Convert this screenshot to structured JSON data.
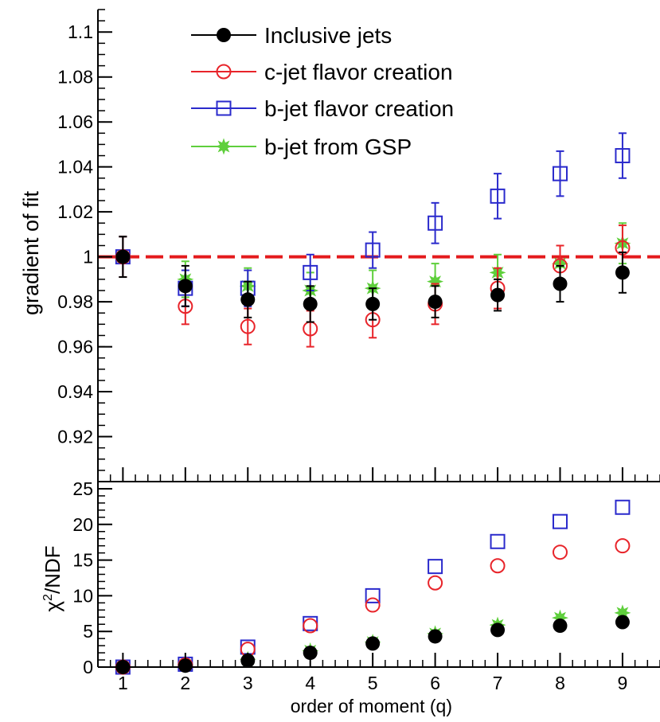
{
  "colors": {
    "inclusive": "#000000",
    "cjet": "#e8242a",
    "bjet": "#2a2acc",
    "gsp": "#5fcf3c",
    "reference": "#e41a1c"
  },
  "chart_data": [
    {
      "type": "scatter",
      "panel": "top",
      "title": "",
      "xlabel": "",
      "ylabel": "gradient of fit",
      "xlim": [
        0.6,
        9.6
      ],
      "ylim": [
        0.9,
        1.11
      ],
      "yticks": [
        "0.92",
        "0.94",
        "0.96",
        "0.98",
        "1",
        "1.02",
        "1.04",
        "1.06",
        "1.08",
        "1.1"
      ],
      "ytick_values": [
        0.92,
        0.94,
        0.96,
        0.98,
        1.0,
        1.02,
        1.04,
        1.06,
        1.08,
        1.1
      ],
      "reference_line": 1.0,
      "grid": false,
      "legend_position": "top-left",
      "x": [
        1,
        2,
        3,
        4,
        5,
        6,
        7,
        8,
        9
      ],
      "series": [
        {
          "name": "Inclusive jets",
          "marker": "filled-circle",
          "color": "#000000",
          "values": [
            1.0,
            0.987,
            0.981,
            0.979,
            0.979,
            0.98,
            0.983,
            0.988,
            0.993
          ],
          "errors": [
            0.009,
            0.009,
            0.008,
            0.008,
            0.007,
            0.007,
            0.007,
            0.008,
            0.009
          ]
        },
        {
          "name": "c-jet flavor creation",
          "marker": "open-circle",
          "color": "#e8242a",
          "values": [
            1.0,
            0.978,
            0.969,
            0.968,
            0.972,
            0.979,
            0.986,
            0.996,
            1.004
          ],
          "errors": [
            0.009,
            0.008,
            0.008,
            0.008,
            0.008,
            0.009,
            0.009,
            0.009,
            0.01
          ]
        },
        {
          "name": "b-jet flavor creation",
          "marker": "open-square",
          "color": "#2a2acc",
          "values": [
            1.0,
            0.986,
            0.986,
            0.993,
            1.003,
            1.015,
            1.027,
            1.037,
            1.045
          ],
          "errors": [
            0.009,
            0.008,
            0.008,
            0.008,
            0.008,
            0.009,
            0.01,
            0.01,
            0.01
          ]
        },
        {
          "name": "b-jet from GSP",
          "marker": "filled-star",
          "color": "#5fcf3c",
          "values": [
            1.0,
            0.99,
            0.987,
            0.985,
            0.986,
            0.989,
            0.993,
            0.997,
            1.006
          ],
          "errors": [
            0.009,
            0.008,
            0.008,
            0.008,
            0.008,
            0.008,
            0.008,
            0.008,
            0.009
          ]
        }
      ]
    },
    {
      "type": "scatter",
      "panel": "bottom",
      "title": "",
      "xlabel": "order of moment (q)",
      "ylabel_prefix": "χ",
      "ylabel_sup": "2",
      "ylabel_suffix": "/NDF",
      "xlim": [
        0.6,
        9.6
      ],
      "ylim": [
        0,
        26
      ],
      "xticks": [
        "1",
        "2",
        "3",
        "4",
        "5",
        "6",
        "7",
        "8",
        "9"
      ],
      "yticks": [
        "0",
        "5",
        "10",
        "15",
        "20",
        "25"
      ],
      "ytick_values": [
        0,
        5,
        10,
        15,
        20,
        25
      ],
      "grid": false,
      "x": [
        1,
        2,
        3,
        4,
        5,
        6,
        7,
        8,
        9
      ],
      "series": [
        {
          "name": "Inclusive jets",
          "marker": "filled-circle",
          "color": "#000000",
          "values": [
            0,
            0.2,
            0.9,
            2.0,
            3.3,
            4.3,
            5.2,
            5.8,
            6.3
          ]
        },
        {
          "name": "c-jet flavor creation",
          "marker": "open-circle",
          "color": "#e8242a",
          "values": [
            0,
            0.3,
            2.5,
            5.8,
            8.7,
            11.8,
            14.2,
            16.1,
            17.0
          ]
        },
        {
          "name": "b-jet flavor creation",
          "marker": "open-square",
          "color": "#2a2acc",
          "values": [
            0,
            0.4,
            2.8,
            6.1,
            10.0,
            14.1,
            17.6,
            20.4,
            22.4
          ]
        },
        {
          "name": "b-jet from GSP",
          "marker": "filled-star",
          "color": "#5fcf3c",
          "values": [
            0,
            0.3,
            1.1,
            2.3,
            3.5,
            4.7,
            5.9,
            6.9,
            7.6
          ]
        }
      ]
    }
  ]
}
